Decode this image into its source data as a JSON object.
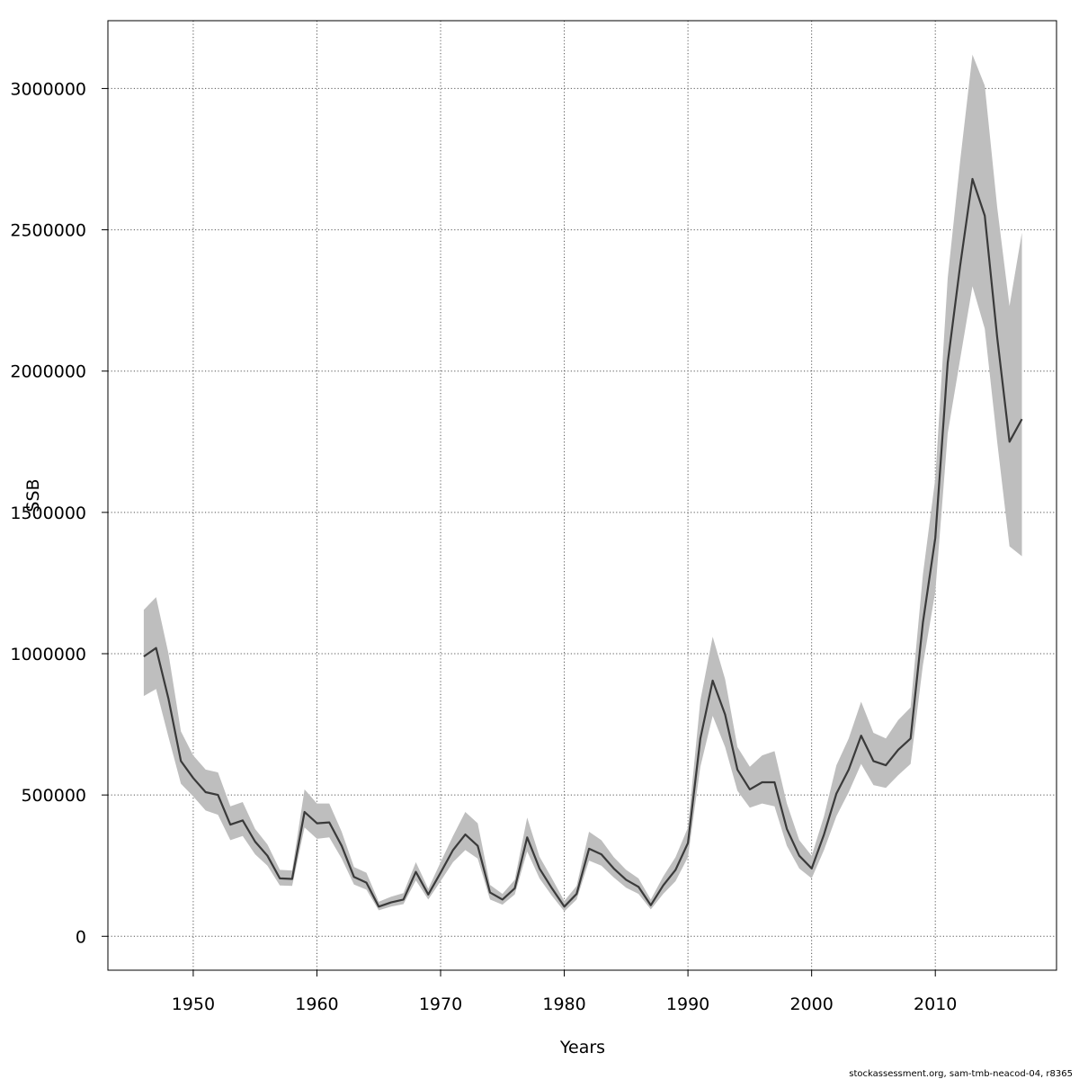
{
  "chart_data": {
    "type": "line",
    "title": "",
    "xlabel": "Years",
    "ylabel": "SSB",
    "xlim": [
      1943.1,
      2019.8
    ],
    "ylim": [
      -120000,
      3240000
    ],
    "xticks": [
      1950,
      1960,
      1970,
      1980,
      1990,
      2000,
      2010
    ],
    "yticks": [
      0,
      500000,
      1000000,
      1500000,
      2000000,
      2500000,
      3000000
    ],
    "grid": true,
    "band_color": "#bebebe",
    "line_color": "#3a3a3a",
    "footer": "stockassessment.org, sam-tmb-neacod-04, r8365",
    "series": [
      {
        "x": [
          1946,
          1947,
          1948,
          1949,
          1950,
          1951,
          1952,
          1953,
          1954,
          1955,
          1956,
          1957,
          1958,
          1959,
          1960,
          1961,
          1962,
          1963,
          1964,
          1965,
          1966,
          1967,
          1968,
          1969,
          1970,
          1971,
          1972,
          1973,
          1974,
          1975,
          1976,
          1977,
          1978,
          1979,
          1980,
          1981,
          1982,
          1983,
          1984,
          1985,
          1986,
          1987,
          1988,
          1989,
          1990,
          1991,
          1992,
          1993,
          1994,
          1995,
          1996,
          1997,
          1998,
          1999,
          2000,
          2001,
          2002,
          2003,
          2004,
          2005,
          2006,
          2007,
          2008,
          2009,
          2010,
          2011,
          2012,
          2013,
          2014,
          2015,
          2016,
          2017
        ],
        "y": [
          990000,
          1020000,
          840000,
          620000,
          560000,
          510000,
          500000,
          395000,
          410000,
          335000,
          285000,
          205000,
          203000,
          440000,
          400000,
          403000,
          320000,
          210000,
          190000,
          105000,
          120000,
          130000,
          228000,
          148000,
          225000,
          305000,
          360000,
          320000,
          155000,
          130000,
          170000,
          350000,
          240000,
          170000,
          105000,
          150000,
          310000,
          290000,
          240000,
          200000,
          175000,
          110000,
          180000,
          235000,
          330000,
          700000,
          905000,
          785000,
          590000,
          520000,
          545000,
          545000,
          380000,
          285000,
          240000,
          360000,
          505000,
          590000,
          710000,
          620000,
          605000,
          660000,
          700000,
          1110000,
          1410000,
          2030000,
          2370000,
          2680000,
          2550000,
          2120000,
          1750000,
          1830000
        ],
        "lower": [
          850000,
          875000,
          705000,
          540000,
          495000,
          445000,
          430000,
          340000,
          355000,
          290000,
          250000,
          180000,
          178000,
          385000,
          345000,
          350000,
          275000,
          183000,
          165000,
          92000,
          105000,
          114000,
          198000,
          130000,
          195000,
          262000,
          305000,
          275000,
          130000,
          112000,
          148000,
          300000,
          205000,
          143000,
          88000,
          130000,
          268000,
          250000,
          208000,
          172000,
          150000,
          95000,
          150000,
          195000,
          280000,
          600000,
          780000,
          670000,
          515000,
          455000,
          470000,
          460000,
          320000,
          240000,
          205000,
          305000,
          425000,
          510000,
          610000,
          535000,
          525000,
          570000,
          610000,
          960000,
          1220000,
          1780000,
          2040000,
          2300000,
          2150000,
          1750000,
          1380000,
          1345000
        ],
        "upper": [
          1155000,
          1200000,
          1000000,
          725000,
          640000,
          590000,
          580000,
          460000,
          475000,
          380000,
          325000,
          235000,
          233000,
          520000,
          470000,
          470000,
          370000,
          245000,
          225000,
          122000,
          140000,
          153000,
          262000,
          168000,
          262000,
          355000,
          440000,
          400000,
          182000,
          150000,
          200000,
          420000,
          282000,
          205000,
          125000,
          178000,
          370000,
          340000,
          280000,
          235000,
          205000,
          130000,
          212000,
          280000,
          385000,
          835000,
          1060000,
          910000,
          670000,
          600000,
          640000,
          655000,
          470000,
          340000,
          285000,
          425000,
          605000,
          700000,
          830000,
          720000,
          700000,
          765000,
          810000,
          1280000,
          1620000,
          2330000,
          2740000,
          3120000,
          3010000,
          2580000,
          2230000,
          2490000
        ]
      }
    ]
  }
}
